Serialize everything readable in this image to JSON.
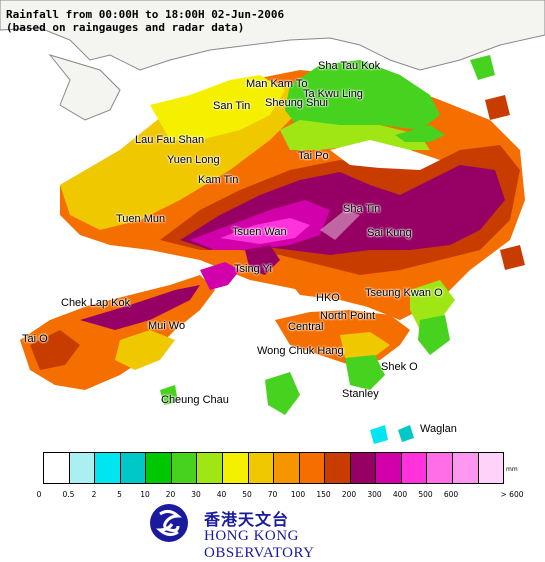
{
  "title": {
    "line1": "Rainfall from 00:00H to 18:00H 02-Jun-2006",
    "line2": "(based on raingauges and radar data)"
  },
  "places": [
    {
      "id": "sha-tau-kok",
      "label": "Sha Tau Kok"
    },
    {
      "id": "man-kam-to",
      "label": "Man Kam To"
    },
    {
      "id": "ta-kwu-ling",
      "label": "Ta Kwu Ling"
    },
    {
      "id": "sheung-shui",
      "label": "Sheung Shui"
    },
    {
      "id": "san-tin",
      "label": "San Tin"
    },
    {
      "id": "lau-fau-shan",
      "label": "Lau Fau Shan"
    },
    {
      "id": "yuen-long",
      "label": "Yuen Long"
    },
    {
      "id": "tai-po",
      "label": "Tai Po"
    },
    {
      "id": "kam-tin",
      "label": "Kam Tin"
    },
    {
      "id": "tuen-mun",
      "label": "Tuen Mun"
    },
    {
      "id": "sha-tin",
      "label": "Sha Tin"
    },
    {
      "id": "tsuen-wan",
      "label": "Tsuen Wan"
    },
    {
      "id": "sai-kung",
      "label": "Sai Kung"
    },
    {
      "id": "tsing-yi",
      "label": "Tsing Yi"
    },
    {
      "id": "chek-lap-kok",
      "label": "Chek Lap Kok"
    },
    {
      "id": "hko",
      "label": "HKO"
    },
    {
      "id": "tseung-kwan-o",
      "label": "Tseung Kwan O"
    },
    {
      "id": "mui-wo",
      "label": "Mui Wo"
    },
    {
      "id": "north-point",
      "label": "North Point"
    },
    {
      "id": "tai-o",
      "label": "Tai O"
    },
    {
      "id": "central",
      "label": "Central"
    },
    {
      "id": "wong-chuk-hang",
      "label": "Wong Chuk Hang"
    },
    {
      "id": "shek-o",
      "label": "Shek O"
    },
    {
      "id": "stanley",
      "label": "Stanley"
    },
    {
      "id": "cheung-chau",
      "label": "Cheung Chau"
    },
    {
      "id": "waglan",
      "label": "Waglan"
    }
  ],
  "legend": {
    "unit": "mm",
    "colors": [
      "#ffffff",
      "#aaf0f0",
      "#00e6f0",
      "#00c8c8",
      "#00c800",
      "#46d21e",
      "#a0e614",
      "#f5f000",
      "#f0c800",
      "#f59600",
      "#f56e00",
      "#c83c00",
      "#960064",
      "#d200aa",
      "#ff32dc",
      "#ff6ee6",
      "#ff96f0",
      "#ffd2fa"
    ],
    "ticks": [
      "0",
      "0.5",
      "2",
      "5",
      "10",
      "20",
      "30",
      "40",
      "50",
      "70",
      "100",
      "150",
      "200",
      "300",
      "400",
      "500",
      "600",
      "> 600"
    ]
  },
  "logo": {
    "name_cn": "香港天文台",
    "name_en": "HONG KONG OBSERVATORY"
  }
}
